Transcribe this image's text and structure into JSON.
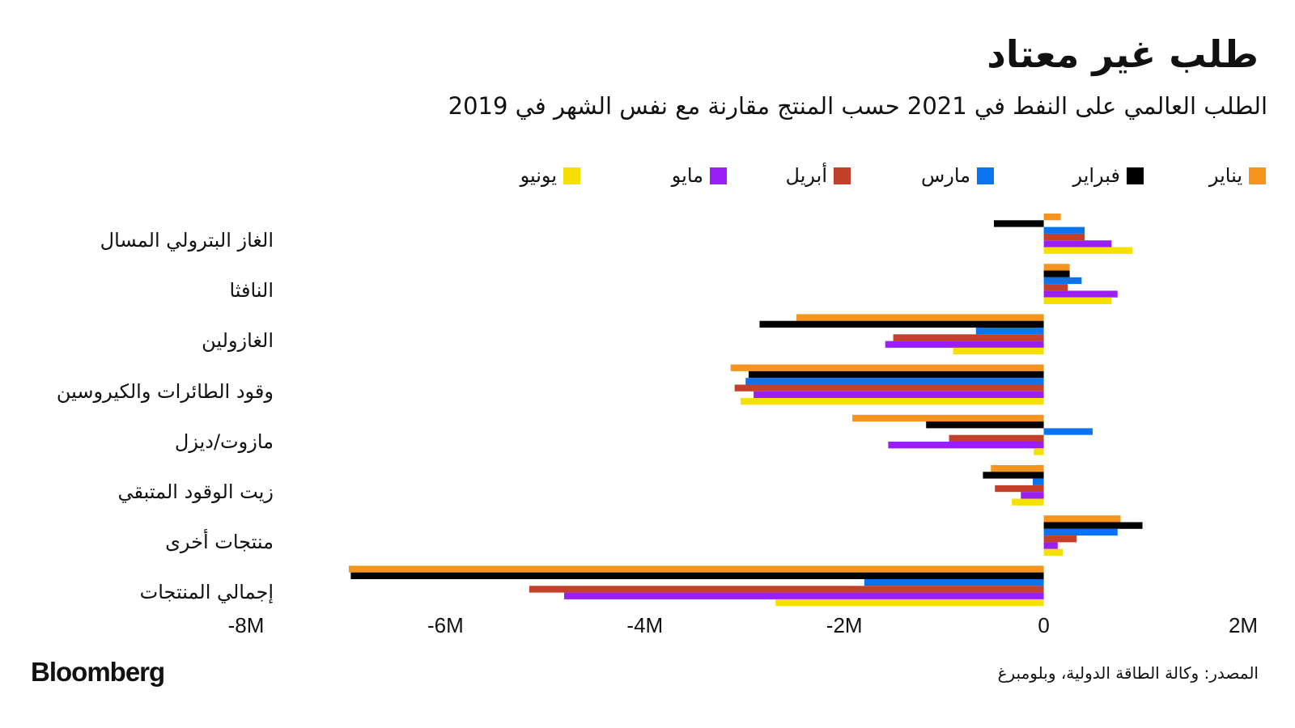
{
  "chart_data": {
    "type": "bar",
    "orientation": "horizontal",
    "title": "طلب غير معتاد",
    "subtitle": "الطلب العالمي على النفط في 2021 حسب المنتج مقارنة مع نفس الشهر في 2019",
    "categories": [
      "الغاز البترولي المسال",
      "النافثا",
      "الغازولين",
      "وقود الطائرات والكيروسين",
      "مازوت/ديزل",
      "زيت الوقود المتبقي",
      "منتجات أخرى",
      "إجمالي المنتجات"
    ],
    "series": [
      {
        "name": "يناير",
        "color": "#f7941d",
        "values": [
          170000,
          260000,
          -2480000,
          -3140000,
          -1920000,
          -530000,
          770000,
          -6970000
        ]
      },
      {
        "name": "فبراير",
        "color": "#000000",
        "values": [
          -500000,
          260000,
          -2850000,
          -2960000,
          -1180000,
          -610000,
          990000,
          -6950000
        ]
      },
      {
        "name": "مارس",
        "color": "#0a74f0",
        "values": [
          410000,
          380000,
          -680000,
          -2990000,
          490000,
          -110000,
          740000,
          -1800000
        ]
      },
      {
        "name": "أبريل",
        "color": "#c3402b",
        "values": [
          410000,
          240000,
          -1510000,
          -3100000,
          -950000,
          -490000,
          330000,
          -5160000
        ]
      },
      {
        "name": "مايو",
        "color": "#9a1ff2",
        "values": [
          680000,
          740000,
          -1590000,
          -2910000,
          -1560000,
          -230000,
          140000,
          -4810000
        ]
      },
      {
        "name": "يونيو",
        "color": "#f5e000",
        "values": [
          890000,
          680000,
          -910000,
          -3040000,
          -100000,
          -320000,
          190000,
          -2690000
        ]
      }
    ],
    "xlim": [
      -8000000,
      2000000
    ],
    "xticks": [
      {
        "value": -8000000,
        "label": "-8M"
      },
      {
        "value": -6000000,
        "label": "-6M"
      },
      {
        "value": -4000000,
        "label": "-4M"
      },
      {
        "value": -2000000,
        "label": "-2M"
      },
      0,
      {
        "value": 2000000,
        "label": "2M"
      }
    ],
    "grid": false,
    "legend": "top",
    "source": "المصدر: وكالة الطاقة الدولية، وبلومبرغ",
    "brand": "Bloomberg"
  }
}
